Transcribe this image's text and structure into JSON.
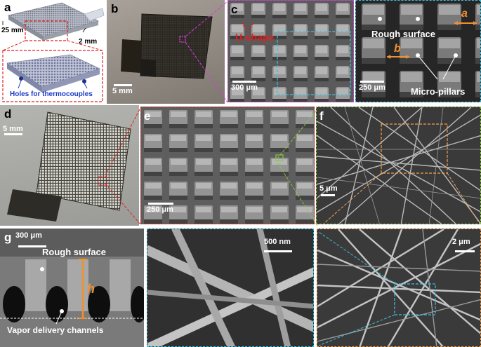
{
  "panels": {
    "a": {
      "label": "a",
      "dim_width": "25 mm",
      "dim_height": "2 mm",
      "inset_caption": "Holes for thermocouples"
    },
    "b": {
      "label": "b",
      "scalebar": "5 mm"
    },
    "c": {
      "label": "c",
      "annotation": "U-shape",
      "scalebar": "300 μm"
    },
    "c2": {
      "scalebar": "250 μm",
      "annot_rough": "Rough surface",
      "annot_pillars": "Micro-pillars",
      "dim_a": "a",
      "dim_b": "b"
    },
    "d": {
      "label": "d",
      "scalebar": "5 mm"
    },
    "e": {
      "label": "e",
      "scalebar": "250 μm"
    },
    "f": {
      "label": "f",
      "scalebar": "5 μm"
    },
    "g": {
      "label": "g",
      "scalebar": "300 μm",
      "annot_rough": "Rough surface",
      "annot_channels": "Vapor delivery channels",
      "dim_h": "h"
    },
    "g2": {
      "scalebar": "500 nm"
    },
    "g3": {
      "scalebar": "2 μm"
    }
  },
  "colors": {
    "frame_magenta": "#d63ad6",
    "frame_red": "#e02020",
    "frame_green": "#8cc63f",
    "frame_cyan": "#3cc0e0",
    "frame_orange": "#f0a050",
    "annot_orange": "#f09030",
    "annot_red": "#e02020",
    "annot_blue": "#1a3cc8"
  }
}
